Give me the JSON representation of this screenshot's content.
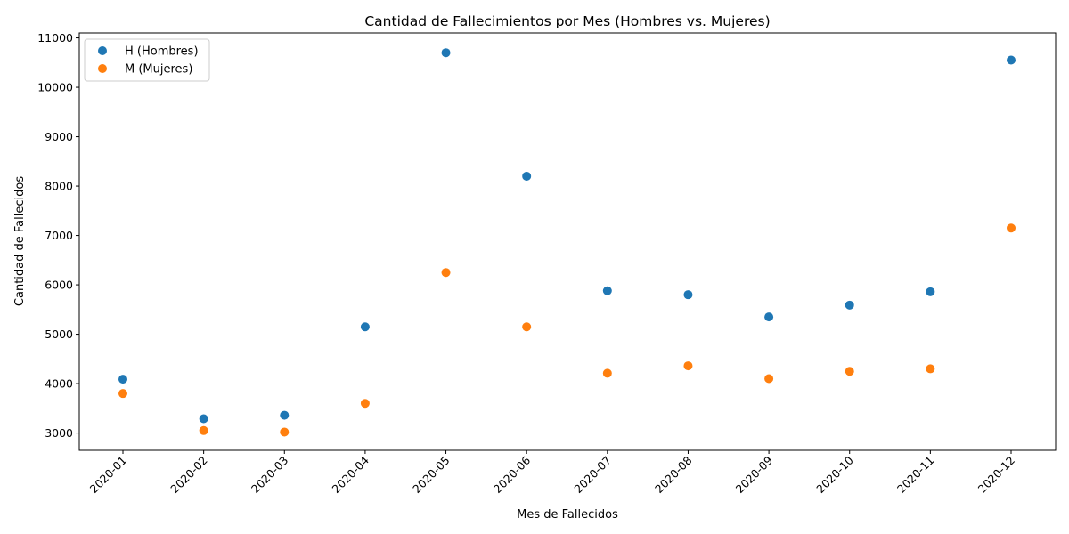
{
  "chart_data": {
    "type": "scatter",
    "title": "Cantidad de Fallecimientos por Mes (Hombres vs. Mujeres)",
    "xlabel": "Mes de Fallecidos",
    "ylabel": "Cantidad de Fallecidos",
    "categories": [
      "2020-01",
      "2020-02",
      "2020-03",
      "2020-04",
      "2020-05",
      "2020-06",
      "2020-07",
      "2020-08",
      "2020-09",
      "2020-10",
      "2020-11",
      "2020-12"
    ],
    "ylim": [
      2650,
      11100
    ],
    "yticks": [
      3000,
      4000,
      5000,
      6000,
      7000,
      8000,
      9000,
      10000,
      11000
    ],
    "grid": false,
    "legend_position": "top-left",
    "series": [
      {
        "name": "H (Hombres)",
        "color": "#1f77b4",
        "values": [
          4090,
          3290,
          3360,
          5150,
          10700,
          8200,
          5880,
          5800,
          5350,
          5590,
          5860,
          10550
        ]
      },
      {
        "name": "M (Mujeres)",
        "color": "#ff7f0e",
        "values": [
          3800,
          3050,
          3020,
          3600,
          6250,
          5150,
          4210,
          4360,
          4100,
          4250,
          4300,
          7150
        ]
      }
    ]
  }
}
